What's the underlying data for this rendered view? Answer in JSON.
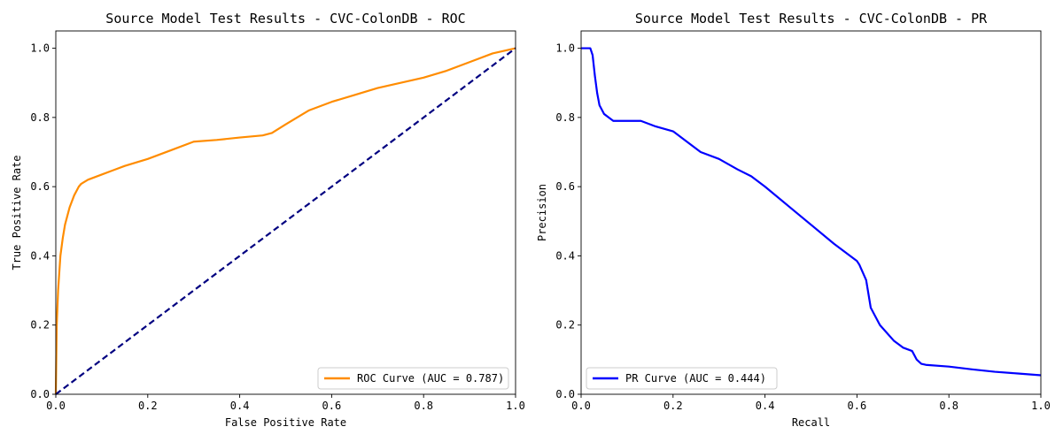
{
  "chart_data": [
    {
      "type": "line",
      "title": "Source Model Test Results - CVC-ColonDB - ROC",
      "xlabel": "False Positive Rate",
      "ylabel": "True Positive Rate",
      "xlim": [
        0,
        1
      ],
      "ylim": [
        0,
        1.05
      ],
      "xticks": [
        "0.0",
        "0.2",
        "0.4",
        "0.6",
        "0.8",
        "1.0"
      ],
      "yticks": [
        "0.0",
        "0.2",
        "0.4",
        "0.6",
        "0.8",
        "1.0"
      ],
      "grid": false,
      "legend_position": "lower-right",
      "series": [
        {
          "name": "ROC Curve (AUC = 0.787)",
          "color": "#ff8c00",
          "dashed": false,
          "x": [
            0,
            0.002,
            0.005,
            0.01,
            0.015,
            0.02,
            0.03,
            0.04,
            0.05,
            0.055,
            0.06,
            0.07,
            0.1,
            0.15,
            0.2,
            0.25,
            0.3,
            0.35,
            0.4,
            0.45,
            0.47,
            0.5,
            0.55,
            0.6,
            0.65,
            0.7,
            0.75,
            0.8,
            0.85,
            0.9,
            0.95,
            1.0
          ],
          "y": [
            0,
            0.2,
            0.3,
            0.4,
            0.45,
            0.49,
            0.54,
            0.575,
            0.6,
            0.608,
            0.612,
            0.62,
            0.635,
            0.66,
            0.68,
            0.705,
            0.73,
            0.735,
            0.742,
            0.748,
            0.755,
            0.78,
            0.82,
            0.845,
            0.865,
            0.885,
            0.9,
            0.915,
            0.935,
            0.96,
            0.985,
            1.0
          ]
        },
        {
          "name": "",
          "color": "#000080",
          "dashed": true,
          "x": [
            0,
            1
          ],
          "y": [
            0,
            1
          ]
        }
      ]
    },
    {
      "type": "line",
      "title": "Source Model Test Results - CVC-ColonDB - PR",
      "xlabel": "Recall",
      "ylabel": "Precision",
      "xlim": [
        0,
        1
      ],
      "ylim": [
        0,
        1.05
      ],
      "xticks": [
        "0.0",
        "0.2",
        "0.4",
        "0.6",
        "0.8",
        "1.0"
      ],
      "yticks": [
        "0.0",
        "0.2",
        "0.4",
        "0.6",
        "0.8",
        "1.0"
      ],
      "grid": false,
      "legend_position": "lower-left",
      "series": [
        {
          "name": "PR Curve (AUC = 0.444)",
          "color": "#0000ff",
          "dashed": false,
          "x": [
            0,
            0.01,
            0.02,
            0.025,
            0.03,
            0.035,
            0.04,
            0.05,
            0.06,
            0.07,
            0.08,
            0.1,
            0.13,
            0.16,
            0.2,
            0.23,
            0.26,
            0.3,
            0.34,
            0.37,
            0.4,
            0.45,
            0.5,
            0.55,
            0.6,
            0.605,
            0.61,
            0.62,
            0.63,
            0.65,
            0.68,
            0.7,
            0.72,
            0.73,
            0.74,
            0.75,
            0.8,
            0.85,
            0.9,
            0.95,
            1.0
          ],
          "y": [
            1.0,
            1.0,
            1.0,
            0.98,
            0.92,
            0.87,
            0.835,
            0.81,
            0.8,
            0.79,
            0.79,
            0.79,
            0.79,
            0.775,
            0.76,
            0.73,
            0.7,
            0.68,
            0.65,
            0.63,
            0.6,
            0.545,
            0.49,
            0.435,
            0.385,
            0.375,
            0.36,
            0.33,
            0.25,
            0.2,
            0.155,
            0.135,
            0.125,
            0.1,
            0.088,
            0.085,
            0.08,
            0.072,
            0.065,
            0.06,
            0.055
          ]
        }
      ]
    }
  ]
}
